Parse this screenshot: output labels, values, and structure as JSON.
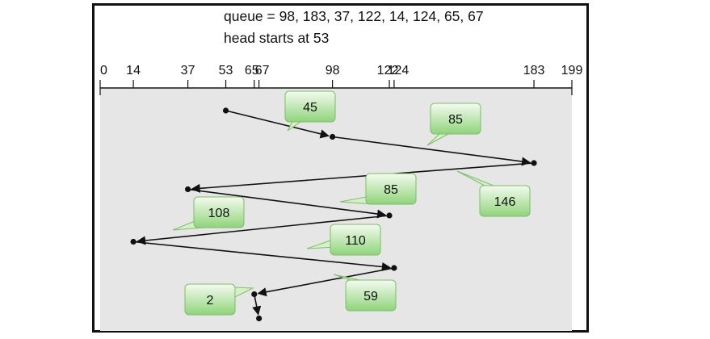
{
  "header": {
    "queue_line": "queue = 98, 183, 37, 122, 14, 124, 65, 67",
    "head_line": "head starts at 53"
  },
  "axis": {
    "min": 0,
    "max": 199,
    "ticks": [
      {
        "value": 0,
        "label": "0"
      },
      {
        "value": 14,
        "label": "14"
      },
      {
        "value": 37,
        "label": "37"
      },
      {
        "value": 53,
        "label": "53"
      },
      {
        "value": 65,
        "label": "65"
      },
      {
        "value": 67,
        "label": "67"
      },
      {
        "value": 98,
        "label": "98"
      },
      {
        "value": 122,
        "label": "122"
      },
      {
        "value": 124,
        "label": "124"
      },
      {
        "value": 183,
        "label": "183"
      },
      {
        "value": 199,
        "label": "199"
      }
    ]
  },
  "path": [
    53,
    98,
    183,
    37,
    122,
    14,
    124,
    65,
    67
  ],
  "movements": [
    {
      "from": 53,
      "to": 98,
      "label": "45"
    },
    {
      "from": 98,
      "to": 183,
      "label": "85"
    },
    {
      "from": 183,
      "to": 37,
      "label": "146"
    },
    {
      "from": 37,
      "to": 122,
      "label": "85"
    },
    {
      "from": 122,
      "to": 14,
      "label": "108"
    },
    {
      "from": 14,
      "to": 124,
      "label": "110"
    },
    {
      "from": 124,
      "to": 65,
      "label": "59"
    },
    {
      "from": 65,
      "to": 67,
      "label": "2"
    }
  ],
  "colors": {
    "callout_top": "#f4fbf0",
    "callout_bottom": "#8fd47a",
    "callout_border": "#7cbf66",
    "line": "#111111",
    "background": "#e6e6e6"
  }
}
